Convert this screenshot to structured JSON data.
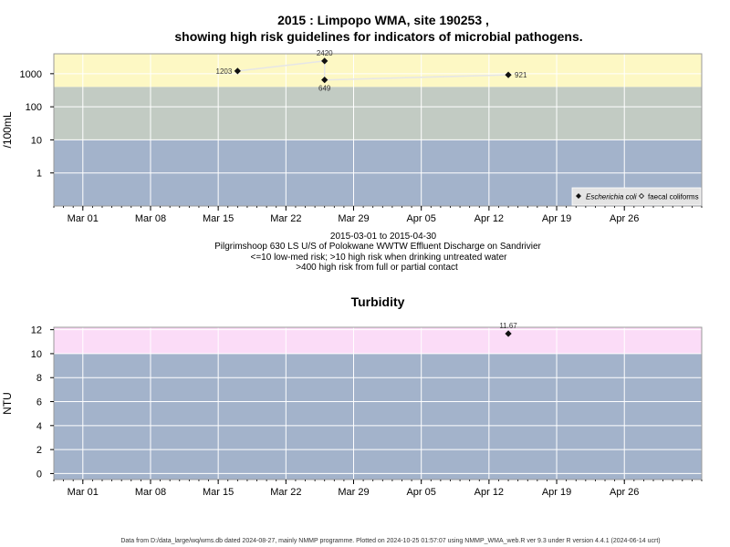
{
  "header": {
    "title_line1": "2015 : Limpopo WMA, site 190253 ,",
    "title_line2": "showing high risk guidelines for indicators of microbial pathogens."
  },
  "chart_data": [
    {
      "type": "scatter",
      "ylabel": "/100mL",
      "yscale": "log",
      "yticks": [
        1,
        10,
        100,
        1000
      ],
      "ytick_labels": [
        "1",
        "10",
        "100",
        "1000"
      ],
      "xlim": [
        "2015-02-26",
        "2015-05-04"
      ],
      "xticks": [
        "2015-03-01",
        "2015-03-08",
        "2015-03-15",
        "2015-03-22",
        "2015-03-29",
        "2015-04-05",
        "2015-04-12",
        "2015-04-19",
        "2015-04-26"
      ],
      "xtick_labels": [
        "Mar 01",
        "Mar 08",
        "Mar 15",
        "Mar 22",
        "Mar 29",
        "Apr 05",
        "Apr 12",
        "Apr 19",
        "Apr 26"
      ],
      "bands": [
        {
          "from": 0.1,
          "to": 10,
          "color": "#a3b3cb"
        },
        {
          "from": 10,
          "to": 400,
          "color": "#c2cbc3"
        },
        {
          "from": 400,
          "to": 4000,
          "color": "#fdf8c4"
        }
      ],
      "series": [
        {
          "name": "Escherichia coli",
          "marker": "filled-diamond",
          "x": [
            "2015-03-17",
            "2015-03-26",
            "2015-03-26",
            "2015-04-14"
          ],
          "y": [
            1203,
            2420,
            649,
            921
          ],
          "labels": [
            "1203",
            "2420",
            "649",
            "921"
          ]
        },
        {
          "name": "faecal coliforms",
          "marker": "open-diamond",
          "x": [],
          "y": []
        }
      ],
      "legend": "bottom-right",
      "subtitle_lines": [
        "2015-03-01 to 2015-04-30",
        "Pilgrimshoop 630 LS U/S of Polokwane WWTW Effluent Discharge on Sandrivier",
        "<=10 low-med risk; >10 high risk when drinking untreated water",
        ">400 high risk from full or partial contact"
      ]
    },
    {
      "type": "scatter",
      "title": "Turbidity",
      "ylabel": "NTU",
      "ylim": [
        -0.5,
        12.2
      ],
      "yticks": [
        0,
        2,
        4,
        6,
        8,
        10,
        12
      ],
      "ytick_labels": [
        "0",
        "2",
        "4",
        "6",
        "8",
        "10",
        "12"
      ],
      "xlim": [
        "2015-02-26",
        "2015-05-04"
      ],
      "xticks": [
        "2015-03-01",
        "2015-03-08",
        "2015-03-15",
        "2015-03-22",
        "2015-03-29",
        "2015-04-05",
        "2015-04-12",
        "2015-04-19",
        "2015-04-26"
      ],
      "xtick_labels": [
        "Mar 01",
        "Mar 08",
        "Mar 15",
        "Mar 22",
        "Mar 29",
        "Apr 05",
        "Apr 12",
        "Apr 19",
        "Apr 26"
      ],
      "bands": [
        {
          "from": -0.5,
          "to": 10,
          "color": "#a3b3cb"
        },
        {
          "from": 10,
          "to": 12.2,
          "color": "#fbdcf7"
        }
      ],
      "series": [
        {
          "marker": "filled-diamond",
          "x": [
            "2015-04-14"
          ],
          "y": [
            11.67
          ],
          "labels": [
            "11.67"
          ]
        }
      ]
    }
  ],
  "footer": {
    "text": "Data from D:/data_large/wq/wms.db dated 2024-08-27, mainly NMMP programme. Plotted on 2024-10-25 01:57:07 using NMMP_WMA_web.R ver 9.3 under R version 4.4.1 (2024-06-14 ucrt)"
  }
}
